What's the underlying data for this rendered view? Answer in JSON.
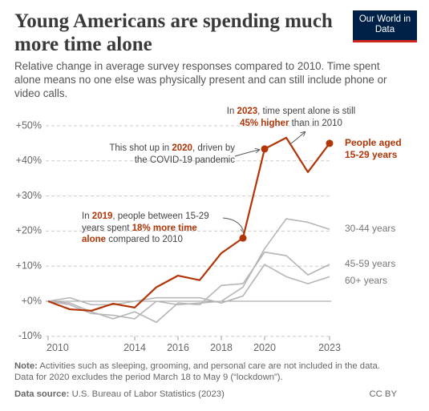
{
  "header": {
    "title": "Young Americans are spending much more time alone",
    "subtitle": "Relative change in average survey responses compared to 2010. Time spent alone means no one else was physically present and can still include phone or video calls.",
    "logo": "Our World in Data"
  },
  "chart_data": {
    "type": "line",
    "x": [
      2010,
      2011,
      2012,
      2013,
      2014,
      2015,
      2016,
      2017,
      2018,
      2019,
      2020,
      2021,
      2022,
      2023
    ],
    "xlim": [
      2010,
      2023
    ],
    "xticks": [
      2010,
      2014,
      2016,
      2018,
      2020,
      2023
    ],
    "ylim": [
      -10,
      50
    ],
    "yticks": [
      {
        "value": -10,
        "label": "-10%"
      },
      {
        "value": 0,
        "label": "+0%"
      },
      {
        "value": 10,
        "label": "+10%"
      },
      {
        "value": 20,
        "label": "+20%"
      },
      {
        "value": 30,
        "label": "+30%"
      },
      {
        "value": 40,
        "label": "+40%"
      },
      {
        "value": 50,
        "label": "+50%"
      }
    ],
    "grid": true,
    "series": [
      {
        "name": "People aged 15-29 years",
        "color": "#b13507",
        "marked_x": [
          2019,
          2020,
          2023
        ],
        "values": [
          0,
          -2.3,
          -2.7,
          -0.7,
          -1.8,
          4,
          7.3,
          6,
          13.7,
          18,
          43.4,
          46.6,
          36.8,
          45
        ]
      },
      {
        "name": "30-44 years",
        "color": "#b5b5b5",
        "values": [
          0,
          -1,
          -3.5,
          -4,
          -5,
          0,
          -1,
          -0.5,
          0,
          4,
          15,
          23.5,
          22.5,
          20.5
        ]
      },
      {
        "name": "45-59 years",
        "color": "#b5b5b5",
        "values": [
          0,
          -0.5,
          -3,
          -5,
          -3,
          -6,
          -0.5,
          -1,
          4.5,
          5,
          14,
          13,
          7.5,
          10.5
        ]
      },
      {
        "name": "60+ years",
        "color": "#b5b5b5",
        "values": [
          0,
          1,
          -1,
          -1,
          0,
          1,
          1,
          1,
          -0.5,
          1.5,
          10.5,
          7,
          5,
          7
        ]
      }
    ],
    "annotations": [
      {
        "segments": [
          "In ",
          "2023",
          ", time spent alone is still ",
          "45% higher",
          " than in 2010"
        ]
      },
      {
        "segments": [
          "This shot up in ",
          "2020",
          ", driven by the COVID-19 pandemic"
        ]
      },
      {
        "segments": [
          "In ",
          "2019",
          ", people between 15-29 years spent ",
          "18% more time alone",
          " compared to 2010"
        ]
      }
    ]
  },
  "footer": {
    "note_label": "Note:",
    "note": "Activities such as sleeping, grooming, and personal care are not included in the data. Data for 2020 excludes the period March 18 to May 9 (“lockdown”).",
    "source_label": "Data source:",
    "source": "U.S. Bureau of Labor Statistics (2023)",
    "license": "CC BY"
  }
}
